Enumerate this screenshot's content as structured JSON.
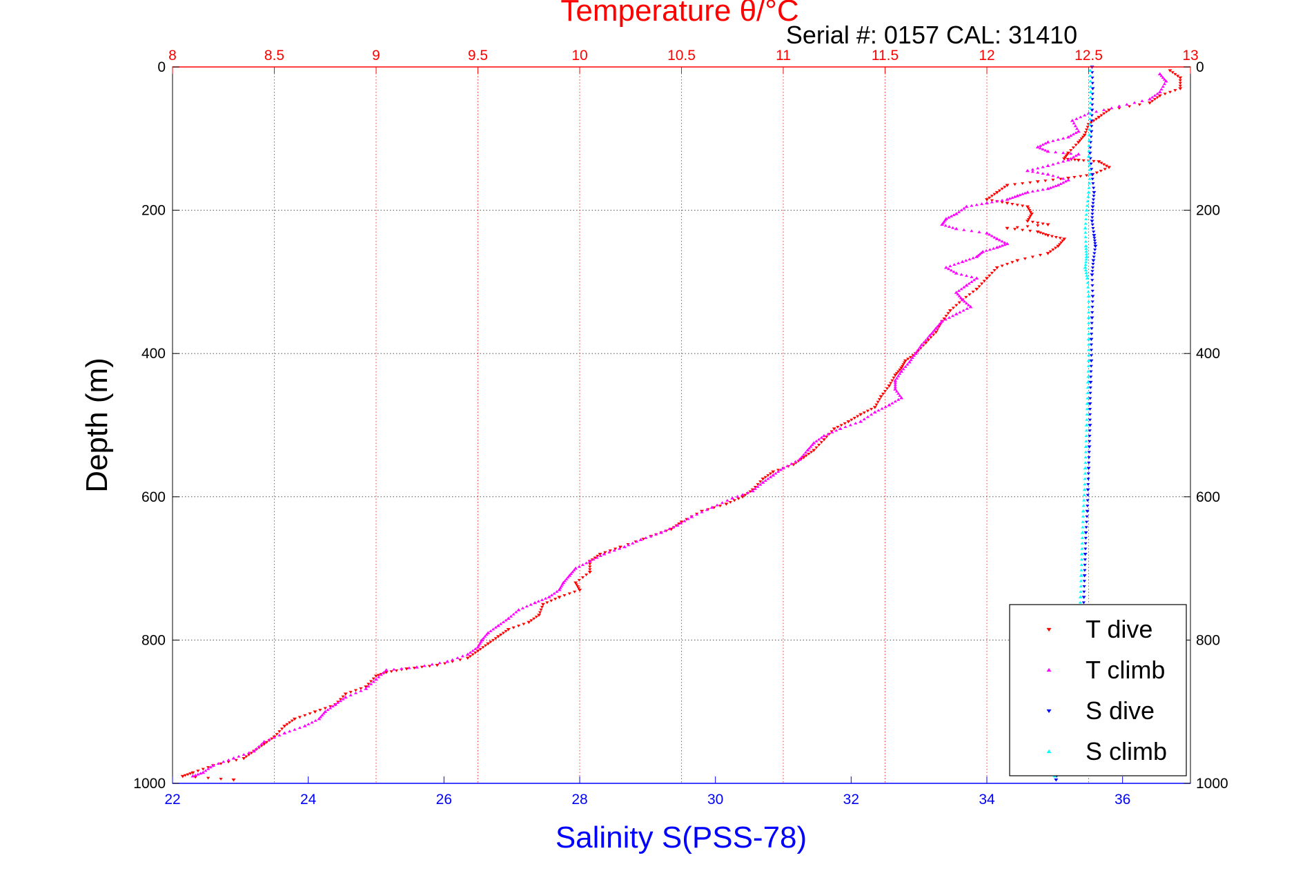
{
  "chart_data": {
    "type": "scatter",
    "title": "Temperature θ/°C",
    "subtitle": "Serial #: 0157  CAL: 31410",
    "ylabel": "Depth (m)",
    "x_top_label": "",
    "x_bottom_label": "Salinity S(PSS-78)",
    "grid": true,
    "legend_position": "bottom-right",
    "y_axis": {
      "min": 0,
      "max": 1000,
      "reversed": true,
      "ticks": [
        0,
        200,
        400,
        600,
        800,
        1000
      ]
    },
    "temperature_axis": {
      "min": 8,
      "max": 13,
      "ticks": [
        "8",
        "8.5",
        "9",
        "9.5",
        "10",
        "10.5",
        "11",
        "11.5",
        "12",
        "12.5",
        "13"
      ],
      "color": "#ff0000"
    },
    "salinity_axis": {
      "min": 22,
      "max": 37,
      "ticks": [
        "22",
        "24",
        "26",
        "28",
        "30",
        "32",
        "34",
        "36"
      ],
      "color": "#0000ff"
    },
    "series": [
      {
        "name": "T dive",
        "axis": "temperature",
        "color": "#ff0000",
        "marker": "triangle-down",
        "points": [
          [
            12.9,
            5
          ],
          [
            12.95,
            15
          ],
          [
            12.95,
            30
          ],
          [
            12.85,
            40
          ],
          [
            12.8,
            50
          ],
          [
            12.6,
            60
          ],
          [
            12.55,
            70
          ],
          [
            12.5,
            80
          ],
          [
            12.48,
            95
          ],
          [
            12.45,
            105
          ],
          [
            12.4,
            120
          ],
          [
            12.38,
            128
          ],
          [
            12.45,
            130
          ],
          [
            12.55,
            132
          ],
          [
            12.6,
            140
          ],
          [
            12.52,
            150
          ],
          [
            12.4,
            155
          ],
          [
            12.25,
            160
          ],
          [
            12.1,
            165
          ],
          [
            12.05,
            175
          ],
          [
            12.0,
            185
          ],
          [
            12.1,
            190
          ],
          [
            12.2,
            195
          ],
          [
            12.22,
            205
          ],
          [
            12.2,
            215
          ],
          [
            12.3,
            220
          ],
          [
            12.1,
            225
          ],
          [
            12.25,
            230
          ],
          [
            12.3,
            235
          ],
          [
            12.38,
            240
          ],
          [
            12.35,
            250
          ],
          [
            12.3,
            260
          ],
          [
            12.15,
            270
          ],
          [
            12.05,
            280
          ],
          [
            12.0,
            295
          ],
          [
            11.95,
            310
          ],
          [
            11.88,
            325
          ],
          [
            11.82,
            340
          ],
          [
            11.78,
            355
          ],
          [
            11.75,
            370
          ],
          [
            11.7,
            385
          ],
          [
            11.65,
            400
          ],
          [
            11.6,
            410
          ],
          [
            11.58,
            420
          ],
          [
            11.55,
            430
          ],
          [
            11.52,
            445
          ],
          [
            11.48,
            460
          ],
          [
            11.45,
            475
          ],
          [
            11.38,
            485
          ],
          [
            11.32,
            495
          ],
          [
            11.25,
            505
          ],
          [
            11.2,
            520
          ],
          [
            11.15,
            535
          ],
          [
            11.1,
            545
          ],
          [
            11.05,
            555
          ],
          [
            10.95,
            565
          ],
          [
            10.9,
            575
          ],
          [
            10.85,
            590
          ],
          [
            10.8,
            600
          ],
          [
            10.72,
            610
          ],
          [
            10.6,
            620
          ],
          [
            10.5,
            635
          ],
          [
            10.45,
            645
          ],
          [
            10.35,
            655
          ],
          [
            10.2,
            670
          ],
          [
            10.1,
            680
          ],
          [
            10.05,
            690
          ],
          [
            10.05,
            705
          ],
          [
            9.98,
            720
          ],
          [
            10.0,
            730
          ],
          [
            9.9,
            740
          ],
          [
            9.82,
            750
          ],
          [
            9.8,
            765
          ],
          [
            9.75,
            775
          ],
          [
            9.65,
            785
          ],
          [
            9.6,
            795
          ],
          [
            9.55,
            805
          ],
          [
            9.5,
            815
          ],
          [
            9.45,
            825
          ],
          [
            9.3,
            835
          ],
          [
            9.15,
            840
          ],
          [
            9.05,
            845
          ],
          [
            9.0,
            850
          ],
          [
            8.95,
            865
          ],
          [
            8.85,
            875
          ],
          [
            8.8,
            890
          ],
          [
            8.7,
            900
          ],
          [
            8.6,
            910
          ],
          [
            8.55,
            920
          ],
          [
            8.5,
            935
          ],
          [
            8.45,
            945
          ],
          [
            8.4,
            955
          ],
          [
            8.35,
            965
          ],
          [
            8.2,
            975
          ],
          [
            8.1,
            985
          ],
          [
            8.05,
            990
          ],
          [
            8.3,
            995
          ]
        ]
      },
      {
        "name": "T climb",
        "axis": "temperature",
        "color": "#ff00ff",
        "marker": "triangle-up",
        "points": [
          [
            12.85,
            10
          ],
          [
            12.88,
            20
          ],
          [
            12.85,
            35
          ],
          [
            12.8,
            45
          ],
          [
            12.65,
            55
          ],
          [
            12.5,
            65
          ],
          [
            12.42,
            75
          ],
          [
            12.45,
            90
          ],
          [
            12.4,
            98
          ],
          [
            12.3,
            105
          ],
          [
            12.25,
            112
          ],
          [
            12.3,
            118
          ],
          [
            12.45,
            122
          ],
          [
            12.4,
            130
          ],
          [
            12.3,
            138
          ],
          [
            12.2,
            145
          ],
          [
            12.3,
            150
          ],
          [
            12.4,
            158
          ],
          [
            12.35,
            165
          ],
          [
            12.3,
            170
          ],
          [
            12.2,
            175
          ],
          [
            12.15,
            180
          ],
          [
            12.1,
            185
          ],
          [
            12.0,
            190
          ],
          [
            11.9,
            195
          ],
          [
            11.85,
            205
          ],
          [
            11.8,
            212
          ],
          [
            11.78,
            220
          ],
          [
            11.85,
            226
          ],
          [
            12.0,
            232
          ],
          [
            12.05,
            240
          ],
          [
            12.1,
            247
          ],
          [
            12.05,
            252
          ],
          [
            11.98,
            258
          ],
          [
            11.95,
            265
          ],
          [
            11.88,
            272
          ],
          [
            11.8,
            280
          ],
          [
            11.85,
            288
          ],
          [
            11.95,
            295
          ],
          [
            11.9,
            305
          ],
          [
            11.85,
            315
          ],
          [
            11.88,
            325
          ],
          [
            11.92,
            335
          ],
          [
            11.85,
            345
          ],
          [
            11.78,
            355
          ],
          [
            11.75,
            365
          ],
          [
            11.72,
            375
          ],
          [
            11.68,
            388
          ],
          [
            11.65,
            400
          ],
          [
            11.62,
            412
          ],
          [
            11.58,
            425
          ],
          [
            11.55,
            438
          ],
          [
            11.55,
            450
          ],
          [
            11.58,
            462
          ],
          [
            11.52,
            472
          ],
          [
            11.45,
            482
          ],
          [
            11.38,
            495
          ],
          [
            11.28,
            505
          ],
          [
            11.2,
            515
          ],
          [
            11.15,
            525
          ],
          [
            11.12,
            535
          ],
          [
            11.08,
            548
          ],
          [
            11.0,
            560
          ],
          [
            10.95,
            570
          ],
          [
            10.9,
            580
          ],
          [
            10.85,
            592
          ],
          [
            10.75,
            602
          ],
          [
            10.65,
            615
          ],
          [
            10.55,
            628
          ],
          [
            10.48,
            640
          ],
          [
            10.4,
            650
          ],
          [
            10.3,
            660
          ],
          [
            10.22,
            670
          ],
          [
            10.12,
            680
          ],
          [
            10.05,
            690
          ],
          [
            9.98,
            700
          ],
          [
            9.95,
            710
          ],
          [
            9.92,
            720
          ],
          [
            9.9,
            730
          ],
          [
            9.85,
            740
          ],
          [
            9.78,
            748
          ],
          [
            9.7,
            758
          ],
          [
            9.65,
            770
          ],
          [
            9.6,
            780
          ],
          [
            9.55,
            790
          ],
          [
            9.52,
            800
          ],
          [
            9.5,
            810
          ],
          [
            9.45,
            820
          ],
          [
            9.35,
            830
          ],
          [
            9.2,
            838
          ],
          [
            9.05,
            842
          ],
          [
            9.0,
            855
          ],
          [
            8.95,
            868
          ],
          [
            8.85,
            880
          ],
          [
            8.8,
            890
          ],
          [
            8.75,
            900
          ],
          [
            8.72,
            910
          ],
          [
            8.65,
            920
          ],
          [
            8.55,
            930
          ],
          [
            8.45,
            942
          ],
          [
            8.4,
            955
          ],
          [
            8.3,
            965
          ],
          [
            8.2,
            975
          ],
          [
            8.15,
            985
          ],
          [
            8.1,
            990
          ]
        ]
      },
      {
        "name": "S dive",
        "axis": "salinity",
        "color": "#0000ff",
        "marker": "triangle-down",
        "points": [
          [
            35.55,
            0
          ],
          [
            35.56,
            30
          ],
          [
            35.55,
            60
          ],
          [
            35.54,
            90
          ],
          [
            35.52,
            120
          ],
          [
            35.55,
            150
          ],
          [
            35.58,
            175
          ],
          [
            35.56,
            195
          ],
          [
            35.55,
            215
          ],
          [
            35.58,
            235
          ],
          [
            35.6,
            250
          ],
          [
            35.57,
            270
          ],
          [
            35.55,
            290
          ],
          [
            35.56,
            320
          ],
          [
            35.55,
            350
          ],
          [
            35.54,
            380
          ],
          [
            35.54,
            410
          ],
          [
            35.53,
            440
          ],
          [
            35.52,
            470
          ],
          [
            35.52,
            500
          ],
          [
            35.51,
            530
          ],
          [
            35.5,
            560
          ],
          [
            35.49,
            590
          ],
          [
            35.48,
            620
          ],
          [
            35.46,
            650
          ],
          [
            35.45,
            680
          ],
          [
            35.44,
            710
          ],
          [
            35.43,
            740
          ],
          [
            35.42,
            770
          ],
          [
            35.4,
            800
          ],
          [
            35.37,
            830
          ],
          [
            35.33,
            860
          ],
          [
            35.28,
            890
          ],
          [
            35.2,
            920
          ],
          [
            35.1,
            950
          ],
          [
            35.05,
            975
          ],
          [
            35.02,
            995
          ]
        ]
      },
      {
        "name": "S climb",
        "axis": "salinity",
        "color": "#00ffff",
        "marker": "triangle-up",
        "points": [
          [
            35.52,
            5
          ],
          [
            35.53,
            35
          ],
          [
            35.52,
            65
          ],
          [
            35.51,
            95
          ],
          [
            35.5,
            125
          ],
          [
            35.52,
            150
          ],
          [
            35.5,
            175
          ],
          [
            35.47,
            200
          ],
          [
            35.45,
            225
          ],
          [
            35.46,
            250
          ],
          [
            35.47,
            265
          ],
          [
            35.45,
            280
          ],
          [
            35.48,
            295
          ],
          [
            35.5,
            320
          ],
          [
            35.5,
            350
          ],
          [
            35.5,
            380
          ],
          [
            35.5,
            410
          ],
          [
            35.49,
            440
          ],
          [
            35.48,
            470
          ],
          [
            35.47,
            500
          ],
          [
            35.46,
            530
          ],
          [
            35.45,
            560
          ],
          [
            35.44,
            590
          ],
          [
            35.42,
            620
          ],
          [
            35.41,
            650
          ],
          [
            35.4,
            680
          ],
          [
            35.39,
            710
          ],
          [
            35.38,
            740
          ],
          [
            35.36,
            770
          ],
          [
            35.33,
            800
          ],
          [
            35.3,
            830
          ],
          [
            35.26,
            860
          ],
          [
            35.2,
            890
          ],
          [
            35.13,
            920
          ],
          [
            35.07,
            950
          ],
          [
            35.03,
            975
          ],
          [
            35.0,
            990
          ]
        ]
      }
    ]
  }
}
